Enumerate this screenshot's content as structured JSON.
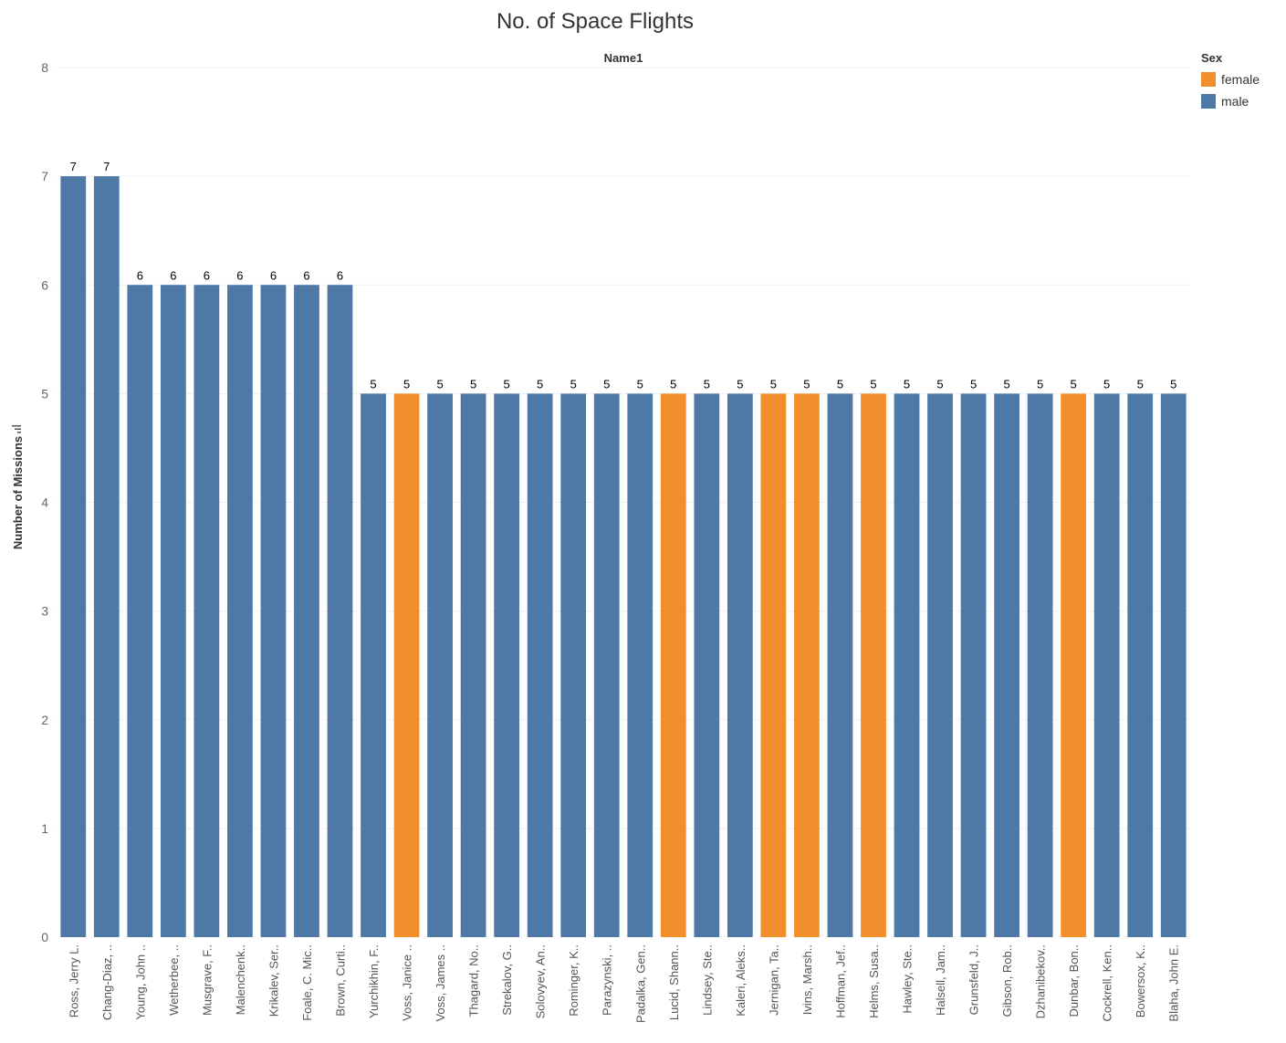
{
  "chart_data": {
    "type": "bar",
    "title": "No. of Space Flights",
    "subtitle": "Name1",
    "ylabel": "Number of Missions",
    "xlabel": "",
    "ylim": [
      0,
      8
    ],
    "yticks": [
      0,
      1,
      2,
      3,
      4,
      5,
      6,
      7,
      8
    ],
    "grid": true,
    "legend_position": "top-right",
    "legend": {
      "title": "Sex",
      "items": [
        {
          "label": "female",
          "color": "#F28E2B"
        },
        {
          "label": "male",
          "color": "#4E79A7"
        }
      ]
    },
    "categories": [
      "Ross, Jerry L.",
      "Chang-Diaz, ..",
      "Young, John ..",
      "Wetherbee, ..",
      "Musgrave, F..",
      "Malenchenk..",
      "Krikalev, Ser..",
      "Foale, C. Mic..",
      "Brown, Curti..",
      "Yurchikhin, F..",
      "Voss, Janice ..",
      "Voss, James ..",
      "Thagard, No..",
      "Strekalov, G..",
      "Solovyev, An..",
      "Rominger, K..",
      "Parazynski, ..",
      "Padalka, Gen..",
      "Lucid, Shann..",
      "Lindsey, Ste..",
      "Kaleri, Aleks..",
      "Jernigan, Ta..",
      "Ivins, Marsh..",
      "Hoffman, Jef..",
      "Helms, Susa..",
      "Hawley, Ste..",
      "Halsell, Jam..",
      "Grunsfeld, J..",
      "Gibson, Rob..",
      "Dzhanibekov..",
      "Dunbar, Bon..",
      "Cockrell, Ken..",
      "Bowersox, K..",
      "Blaha, John E."
    ],
    "values": [
      7,
      7,
      6,
      6,
      6,
      6,
      6,
      6,
      6,
      5,
      5,
      5,
      5,
      5,
      5,
      5,
      5,
      5,
      5,
      5,
      5,
      5,
      5,
      5,
      5,
      5,
      5,
      5,
      5,
      5,
      5,
      5,
      5,
      5
    ],
    "sex": [
      "male",
      "male",
      "male",
      "male",
      "male",
      "male",
      "male",
      "male",
      "male",
      "male",
      "female",
      "male",
      "male",
      "male",
      "male",
      "male",
      "male",
      "male",
      "female",
      "male",
      "male",
      "female",
      "female",
      "male",
      "female",
      "male",
      "male",
      "male",
      "male",
      "male",
      "female",
      "male",
      "male",
      "male"
    ]
  }
}
